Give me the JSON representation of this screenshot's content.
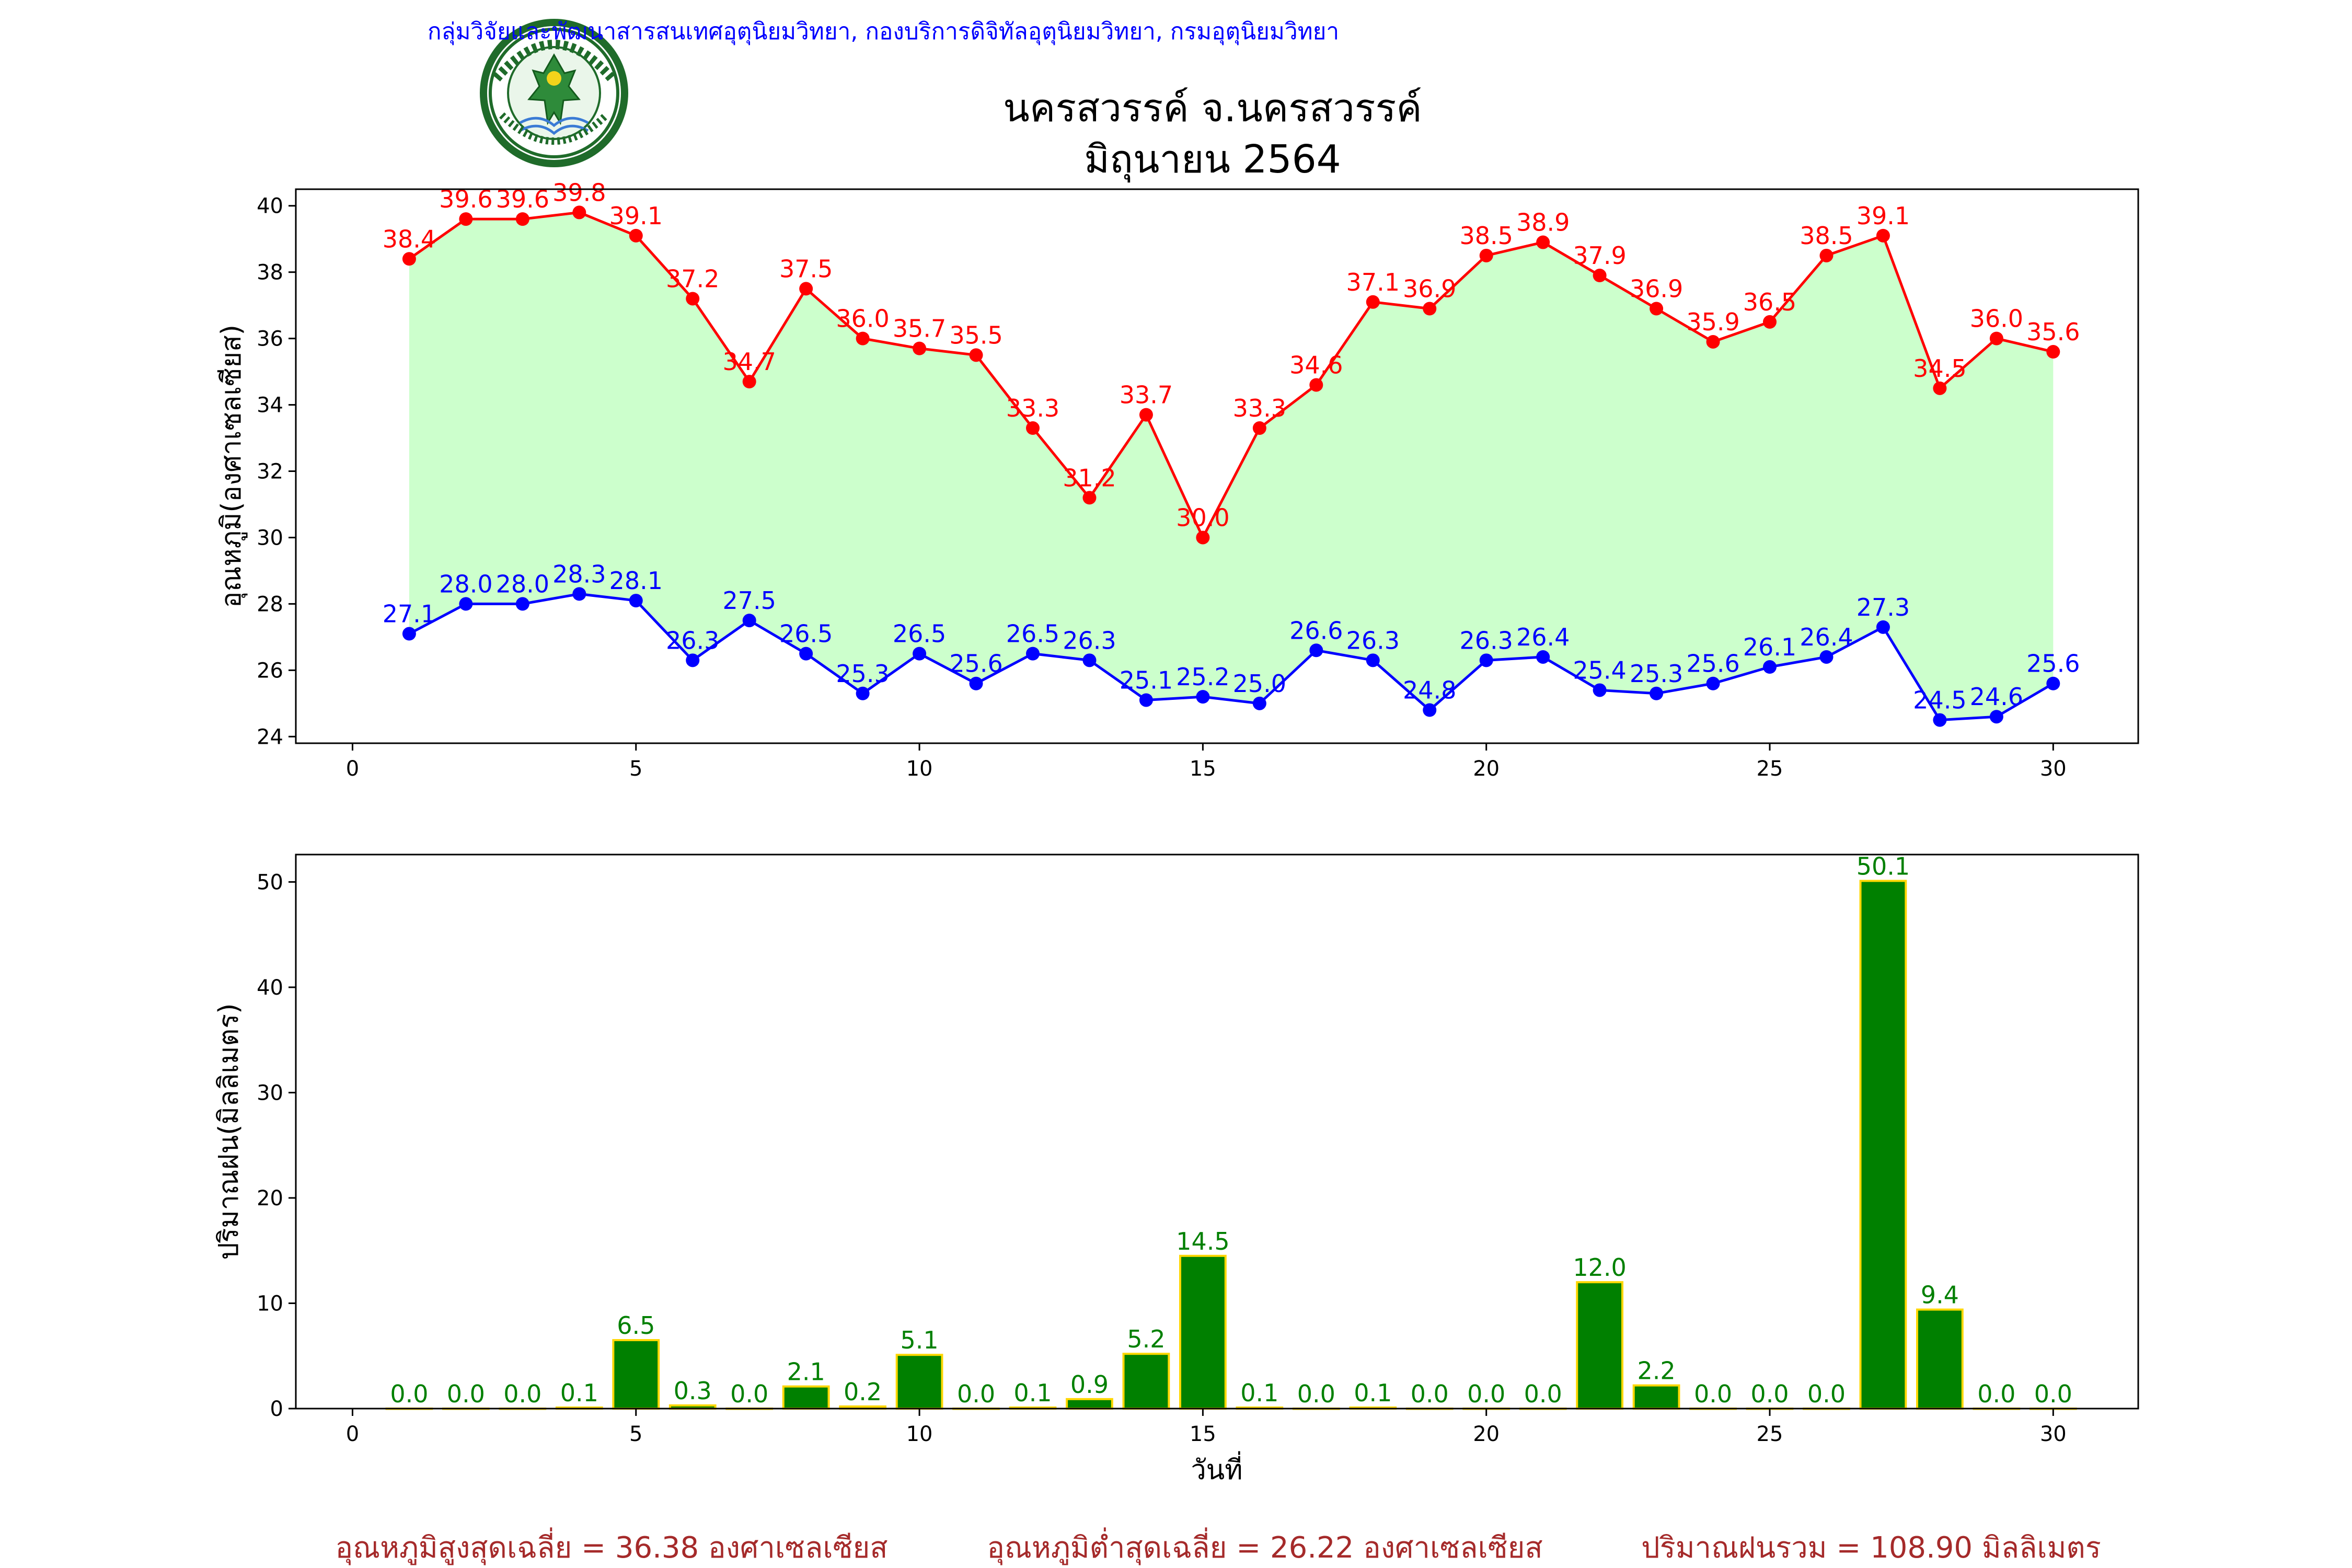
{
  "header": {
    "org_line": "กลุ่มวิจัยและพัฒนาสารสนเทศอุตุนิยมวิทยา, กองบริการดิจิทัลอุตุนิยมวิทยา, กรมอุตุนิยมวิทยา",
    "station": "นครสวรรค์  จ.นครสวรรค์",
    "period": "มิถุนายน 2564",
    "logo_text": "กรมอุตุนิยมวิทยา METEOROLOGICAL DEPARTMENT"
  },
  "colors": {
    "header_text": "#0000ff",
    "tmax": "#ff0000",
    "tmin": "#0000ff",
    "band": "#ccffcc",
    "rain_bar": "#008000",
    "rain_edge": "#ffd700",
    "rain_label": "#008000",
    "summary": "#a52a2a"
  },
  "summary": {
    "tmax_avg": "อุณหภูมิสูงสุดเฉลี่ย = 36.38 องศาเซลเซียส",
    "tmin_avg": "อุณหภูมิต่ำสุดเฉลี่ย = 26.22 องศาเซลเซียส",
    "rain_total": "ปริมาณฝนรวม = 108.90 มิลลิเมตร"
  },
  "chart_data": [
    {
      "type": "line",
      "ylabel": "อุณหภูมิ(องศาเซลเซียส)",
      "xlabel": "",
      "xlim": [
        -1,
        31.5
      ],
      "ylim": [
        23.8,
        40.5
      ],
      "xticks": [
        0,
        5,
        10,
        15,
        20,
        25,
        30
      ],
      "yticks": [
        24,
        26,
        28,
        30,
        32,
        34,
        36,
        38,
        40
      ],
      "x": [
        1,
        2,
        3,
        4,
        5,
        6,
        7,
        8,
        9,
        10,
        11,
        12,
        13,
        14,
        15,
        16,
        17,
        18,
        19,
        20,
        21,
        22,
        23,
        24,
        25,
        26,
        27,
        28,
        29,
        30
      ],
      "series": [
        {
          "key": "tmax",
          "values": [
            38.4,
            39.6,
            39.6,
            39.8,
            39.1,
            37.2,
            34.7,
            37.5,
            36.0,
            35.7,
            35.5,
            33.3,
            31.2,
            33.7,
            30.0,
            33.3,
            34.6,
            37.1,
            36.9,
            38.5,
            38.9,
            37.9,
            36.9,
            35.9,
            36.5,
            38.5,
            39.1,
            34.5,
            36.0,
            35.6
          ]
        },
        {
          "key": "tmin",
          "values": [
            27.1,
            28.0,
            28.0,
            28.3,
            28.1,
            26.3,
            27.5,
            26.5,
            25.3,
            26.5,
            25.6,
            26.5,
            26.3,
            25.1,
            25.2,
            25.0,
            26.6,
            26.3,
            24.8,
            26.3,
            26.4,
            25.4,
            25.3,
            25.6,
            26.1,
            26.4,
            27.3,
            24.5,
            24.6,
            25.6
          ]
        }
      ],
      "grid": false,
      "fill_between": [
        "tmin",
        "tmax"
      ],
      "data_labels": true
    },
    {
      "type": "bar",
      "ylabel": "ปริมาณฝน(มิลลิเมตร)",
      "xlabel": "วันที่",
      "xlim": [
        -1,
        31.5
      ],
      "ylim": [
        0,
        52.6
      ],
      "xticks": [
        0,
        5,
        10,
        15,
        20,
        25,
        30
      ],
      "yticks": [
        0,
        10,
        20,
        30,
        40,
        50
      ],
      "x": [
        1,
        2,
        3,
        4,
        5,
        6,
        7,
        8,
        9,
        10,
        11,
        12,
        13,
        14,
        15,
        16,
        17,
        18,
        19,
        20,
        21,
        22,
        23,
        24,
        25,
        26,
        27,
        28,
        29,
        30
      ],
      "values": [
        0.0,
        0.0,
        0.0,
        0.1,
        6.5,
        0.3,
        0.0,
        2.1,
        0.2,
        5.1,
        0.0,
        0.1,
        0.9,
        5.2,
        14.5,
        0.1,
        0.0,
        0.1,
        0.0,
        0.0,
        0.0,
        12.0,
        2.2,
        0.0,
        0.0,
        0.0,
        50.1,
        9.4,
        0.0,
        0.0
      ],
      "grid": false,
      "data_labels": true
    }
  ]
}
